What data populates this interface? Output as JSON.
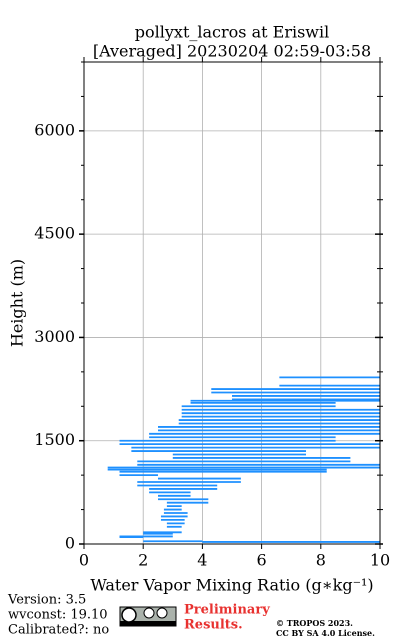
{
  "chart_data": {
    "type": "profile",
    "title": "pollyxt_lacros at Eriswil",
    "subtitle": "[Averaged] 20230204 02:59-03:58",
    "xlabel": "Water Vapor Mixing Ratio (g∗kg⁻¹)",
    "ylabel": "Height (m)",
    "xlim": [
      0,
      10
    ],
    "ylim": [
      0,
      7000
    ],
    "xticks": [
      0,
      2,
      4,
      6,
      8,
      10
    ],
    "yticks": [
      0,
      1500,
      3000,
      4500,
      6000
    ],
    "yminorticks": [
      500,
      1000,
      2000,
      2500,
      3500,
      4000,
      5000,
      5500,
      6500,
      7000
    ],
    "grid": true,
    "color": "#1e90ff",
    "x": [
      10,
      4,
      2,
      1.2,
      3,
      2,
      3.3,
      2.8,
      3.4,
      2.6,
      3.5,
      2.7,
      3.3,
      2.8,
      4.2,
      2.5,
      3.6,
      2.2,
      4.5,
      1.8,
      5.3,
      2.5,
      1.2,
      8.2,
      0.8,
      10.5,
      1.8,
      9,
      3,
      7.5,
      1.6,
      10.5,
      1.2,
      8.5,
      2.2,
      10.5,
      2.5,
      10.5,
      3.2,
      10.5,
      3.3,
      10.5,
      3.3,
      8.5,
      3.6,
      10.5,
      5,
      10.5,
      4.3,
      10.5,
      6.6,
      6.6,
      10.5
    ],
    "y": [
      20,
      30,
      40,
      100,
      110,
      150,
      170,
      250,
      300,
      350,
      400,
      450,
      500,
      550,
      600,
      650,
      700,
      750,
      800,
      850,
      900,
      950,
      1000,
      1050,
      1080,
      1110,
      1150,
      1200,
      1250,
      1300,
      1350,
      1400,
      1450,
      1500,
      1550,
      1600,
      1650,
      1700,
      1750,
      1800,
      1850,
      1900,
      1950,
      2000,
      2050,
      2080,
      2100,
      2150,
      2200,
      2250,
      2300,
      2400,
      2420
    ]
  },
  "footer": {
    "version": "Version: 3.5",
    "wvconst": "wvconst:  19.10",
    "calibrated": "Calibrated?: no",
    "preliminary": [
      "Preliminary",
      "Results."
    ],
    "copyright": [
      "© TROPOS 2023.",
      "CC BY SA 4.0 License."
    ]
  }
}
